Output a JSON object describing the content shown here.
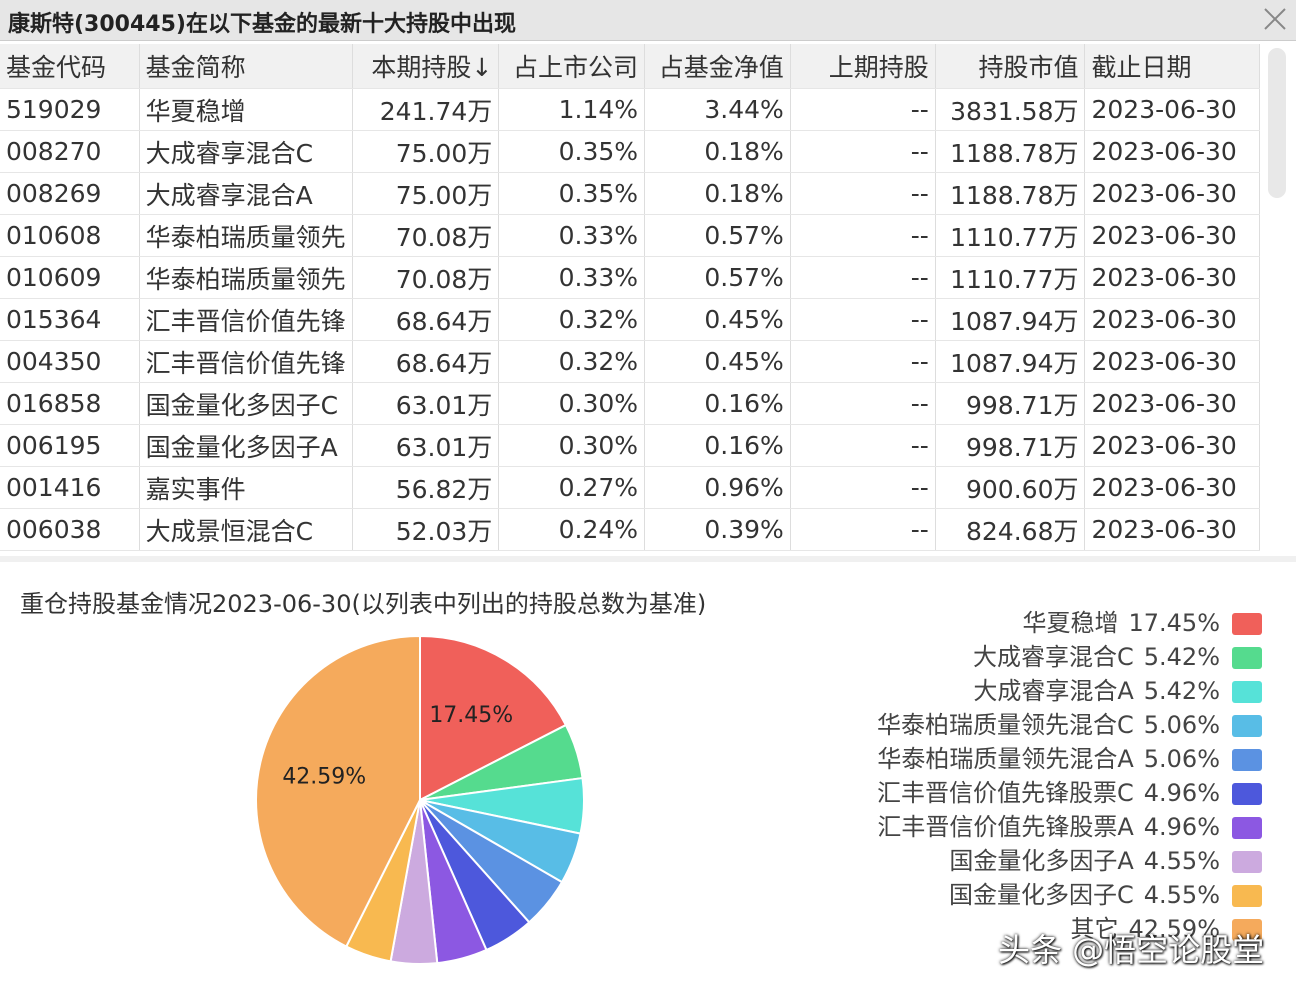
{
  "header": {
    "title": "康斯特(300445)在以下基金的最新十大持股中出现"
  },
  "table": {
    "columns": [
      "基金代码",
      "基金简称",
      "本期持股↓",
      "占上市公司",
      "占基金净值",
      "上期持股",
      "持股市值",
      "截止日期"
    ],
    "rows": [
      [
        "519029",
        "华夏稳增",
        "241.74万",
        "1.14%",
        "3.44%",
        "--",
        "3831.58万",
        "2023-06-30"
      ],
      [
        "008270",
        "大成睿享混合C",
        "75.00万",
        "0.35%",
        "0.18%",
        "--",
        "1188.78万",
        "2023-06-30"
      ],
      [
        "008269",
        "大成睿享混合A",
        "75.00万",
        "0.35%",
        "0.18%",
        "--",
        "1188.78万",
        "2023-06-30"
      ],
      [
        "010608",
        "华泰柏瑞质量领先",
        "70.08万",
        "0.33%",
        "0.57%",
        "--",
        "1110.77万",
        "2023-06-30"
      ],
      [
        "010609",
        "华泰柏瑞质量领先",
        "70.08万",
        "0.33%",
        "0.57%",
        "--",
        "1110.77万",
        "2023-06-30"
      ],
      [
        "015364",
        "汇丰晋信价值先锋",
        "68.64万",
        "0.32%",
        "0.45%",
        "--",
        "1087.94万",
        "2023-06-30"
      ],
      [
        "004350",
        "汇丰晋信价值先锋",
        "68.64万",
        "0.32%",
        "0.45%",
        "--",
        "1087.94万",
        "2023-06-30"
      ],
      [
        "016858",
        "国金量化多因子C",
        "63.01万",
        "0.30%",
        "0.16%",
        "--",
        "998.71万",
        "2023-06-30"
      ],
      [
        "006195",
        "国金量化多因子A",
        "63.01万",
        "0.30%",
        "0.16%",
        "--",
        "998.71万",
        "2023-06-30"
      ],
      [
        "001416",
        "嘉实事件",
        "56.82万",
        "0.27%",
        "0.96%",
        "--",
        "900.60万",
        "2023-06-30"
      ],
      [
        "006038",
        "大成景恒混合C",
        "52.03万",
        "0.24%",
        "0.39%",
        "--",
        "824.68万",
        "2023-06-30"
      ]
    ]
  },
  "chart_data": {
    "type": "pie",
    "title": "重仓持股基金情况2023-06-30(以列表中列出的持股总数为基准)",
    "categories": [
      "华夏稳增",
      "大成睿享混合C",
      "大成睿享混合A",
      "华泰柏瑞质量领先混合C",
      "华泰柏瑞质量领先混合A",
      "汇丰晋信价值先锋股票C",
      "汇丰晋信价值先锋股票A",
      "国金量化多因子A",
      "国金量化多因子C",
      "其它"
    ],
    "values": [
      17.45,
      5.42,
      5.42,
      5.06,
      5.06,
      4.96,
      4.96,
      4.55,
      4.55,
      42.59
    ],
    "value_labels": [
      "17.45%",
      "5.42%",
      "5.42%",
      "5.06%",
      "5.06%",
      "4.96%",
      "4.96%",
      "4.55%",
      "4.55%",
      "42.59%"
    ],
    "colors": [
      "#f0605a",
      "#55db8e",
      "#56e2d8",
      "#58bde6",
      "#5b92e2",
      "#4d58dc",
      "#8c58e2",
      "#ccaadf",
      "#f8b950",
      "#f5aa5c"
    ]
  },
  "watermark": "头条 @悟空论股堂"
}
